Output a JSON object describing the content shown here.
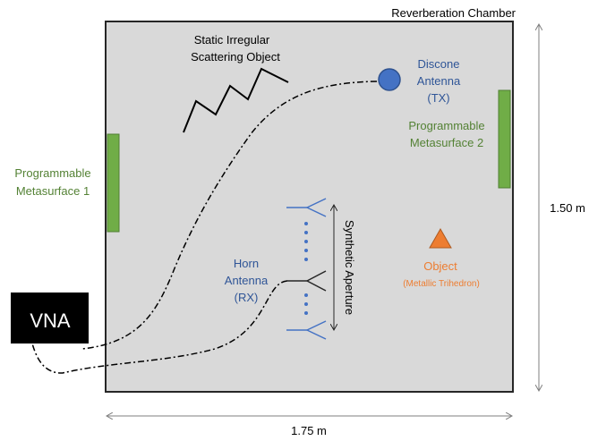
{
  "chamber": {
    "label": "Reverberation Chamber",
    "fill": "#d9d9d9",
    "stroke": "#262626"
  },
  "scatterer": {
    "line1": "Static Irregular",
    "line2": "Scattering Object"
  },
  "discone": {
    "line1": "Discone",
    "line2": "Antenna",
    "line3": "(TX)",
    "color": "#4472c4",
    "text_color": "#2f5597"
  },
  "metasurface1": {
    "line1": "Programmable",
    "line2": "Metasurface 1",
    "color": "#70ad47",
    "text_color": "#548235"
  },
  "metasurface2": {
    "line1": "Programmable",
    "line2": "Metasurface 2",
    "color": "#70ad47",
    "text_color": "#548235"
  },
  "horn": {
    "line1": "Horn",
    "line2": "Antenna",
    "line3": "(RX)",
    "color": "#4472c4",
    "text_color": "#2f5597"
  },
  "aperture": {
    "label": "Synthetic Aperture"
  },
  "object": {
    "label": "Object",
    "sublabel": "(Metallic Trihedron)",
    "color": "#ed7d31",
    "text_color": "#ed7d31"
  },
  "vna": {
    "label": "VNA"
  },
  "dimensions": {
    "height": "1.50 m",
    "width": "1.75 m"
  }
}
